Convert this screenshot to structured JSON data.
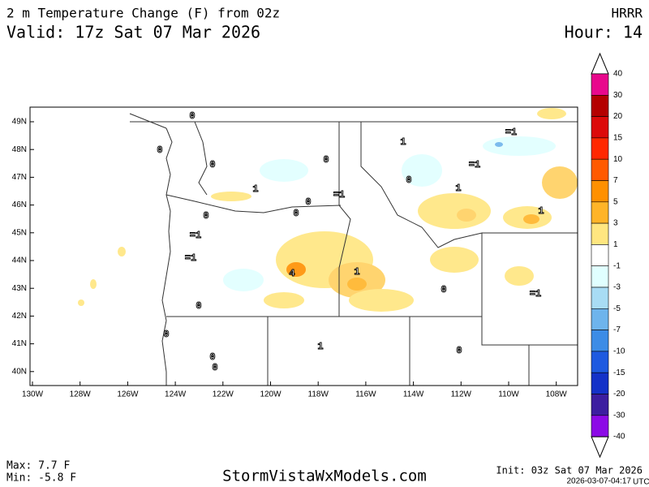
{
  "header": {
    "title": "2 m Temperature Change (F) from 02z",
    "valid": "Valid: 17z Sat 07 Mar 2026",
    "model": "HRRR",
    "hour": "Hour: 14"
  },
  "colorbar": {
    "levels": [
      40,
      30,
      20,
      15,
      10,
      7,
      5,
      3,
      1,
      -1,
      -3,
      -5,
      -7,
      -10,
      -15,
      -20,
      -30,
      -40
    ],
    "colors": [
      "#e8088c",
      "#b40000",
      "#dc0a0a",
      "#ff2800",
      "#ff5a00",
      "#ff9000",
      "#ffb428",
      "#ffe680",
      "#ffffff",
      "#e0ffff",
      "#a8dcf4",
      "#6eb4ec",
      "#3c8ce6",
      "#1e5ae0",
      "#1432c8",
      "#3c1ea0",
      "#8c0ae6"
    ]
  },
  "map": {
    "lat_labels": [
      "49N",
      "48N",
      "47N",
      "46N",
      "45N",
      "44N",
      "43N",
      "42N",
      "41N",
      "40N"
    ],
    "lon_labels": [
      "130W",
      "128W",
      "126W",
      "124W",
      "122W",
      "120W",
      "118W",
      "116W",
      "114W",
      "112W",
      "110W",
      "108W"
    ],
    "contour_labels": [
      "0",
      "0",
      "0",
      "0",
      "0",
      "0",
      "0",
      "0",
      "0",
      "0",
      "0",
      "0",
      "0",
      "0",
      "=1",
      "=1",
      "=1",
      "=1",
      "=1",
      "=1",
      "1",
      "1",
      "1",
      "1",
      "1",
      "1",
      "4"
    ]
  },
  "footer": {
    "max": "Max: 7.7 F",
    "min": "Min: -5.8 F",
    "site": "StormVistaWxModels.com",
    "init": "Init: 03z Sat 07 Mar 2026",
    "timestamp": "2026-03-07-04:17",
    "timestamp_unit": "UTC"
  }
}
